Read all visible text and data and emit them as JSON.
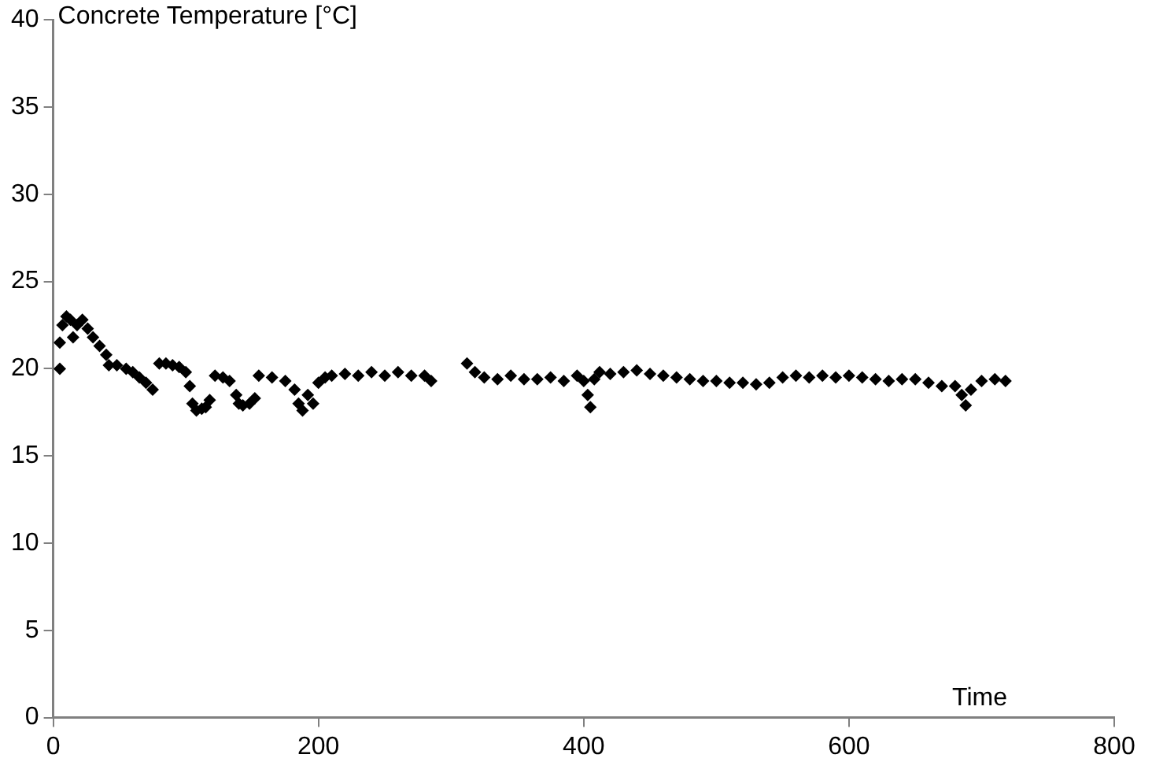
{
  "chart_data": {
    "type": "scatter",
    "ylabel": "Concrete Temperature [°C]",
    "xlabel": "Time",
    "marker": "diamond",
    "grid": false,
    "legend": false,
    "xlim": [
      0,
      800
    ],
    "xticks": [
      0,
      200,
      400,
      600,
      800
    ],
    "ylim": [
      0,
      40
    ],
    "yticks": [
      0,
      5,
      10,
      15,
      20,
      25,
      30,
      35,
      40
    ],
    "series": [
      {
        "color": "#000000",
        "x": [
          5,
          5,
          7,
          10,
          13,
          15,
          18,
          22,
          26,
          30,
          35,
          40,
          42,
          48,
          55,
          60,
          65,
          70,
          75,
          80,
          85,
          90,
          95,
          100,
          103,
          105,
          108,
          112,
          115,
          118,
          122,
          128,
          133,
          138,
          140,
          143,
          148,
          152,
          155,
          165,
          175,
          182,
          185,
          188,
          192,
          196,
          200,
          205,
          210,
          220,
          230,
          240,
          250,
          260,
          270,
          280,
          285,
          312,
          318,
          325,
          335,
          345,
          355,
          365,
          375,
          385,
          395,
          400,
          403,
          405,
          408,
          412,
          420,
          430,
          440,
          450,
          460,
          470,
          480,
          490,
          500,
          510,
          520,
          530,
          540,
          550,
          560,
          570,
          580,
          590,
          600,
          610,
          620,
          630,
          640,
          650,
          660,
          670,
          680,
          685,
          688,
          692,
          700,
          710,
          718
        ],
        "values": [
          20,
          21.5,
          22.5,
          23,
          22.8,
          21.8,
          22.5,
          22.8,
          22.3,
          21.8,
          21.3,
          20.8,
          20.2,
          20.2,
          20,
          19.8,
          19.5,
          19.2,
          18.8,
          20.3,
          20.3,
          20.2,
          20.1,
          19.8,
          19,
          18,
          17.6,
          17.7,
          17.8,
          18.2,
          19.6,
          19.5,
          19.3,
          18.5,
          18,
          17.9,
          18,
          18.3,
          19.6,
          19.5,
          19.3,
          18.8,
          18,
          17.6,
          18.5,
          18,
          19.2,
          19.5,
          19.6,
          19.7,
          19.6,
          19.8,
          19.6,
          19.8,
          19.6,
          19.6,
          19.3,
          20.3,
          19.8,
          19.5,
          19.4,
          19.6,
          19.4,
          19.4,
          19.5,
          19.3,
          19.6,
          19.3,
          18.5,
          17.8,
          19.4,
          19.8,
          19.7,
          19.8,
          19.9,
          19.7,
          19.6,
          19.5,
          19.4,
          19.3,
          19.3,
          19.2,
          19.2,
          19.1,
          19.2,
          19.5,
          19.6,
          19.5,
          19.6,
          19.5,
          19.6,
          19.5,
          19.4,
          19.3,
          19.4,
          19.4,
          19.2,
          19,
          19,
          18.5,
          17.9,
          18.8,
          19.3,
          19.4,
          19.3
        ]
      }
    ]
  }
}
